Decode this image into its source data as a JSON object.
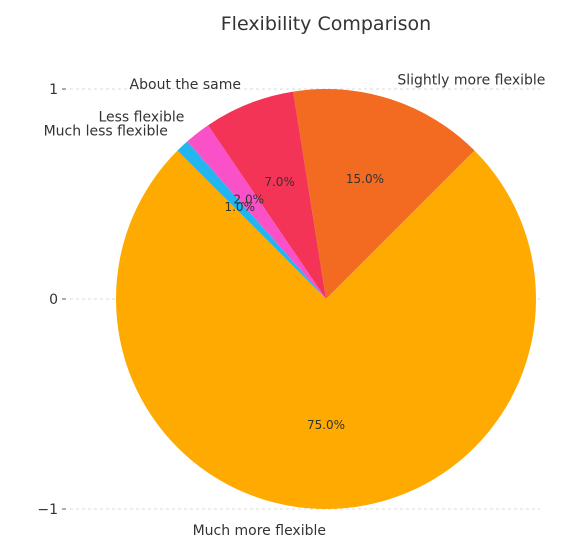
{
  "chart_data": {
    "type": "pie",
    "title": "Flexibility Comparison",
    "start_angle_deg": 135,
    "direction": "counterclockwise",
    "slices": [
      {
        "label": "Much more flexible",
        "value": 75.0,
        "pct_label": "75.0%",
        "color": "#FFAA00"
      },
      {
        "label": "Slightly more flexible",
        "value": 15.0,
        "pct_label": "15.0%",
        "color": "#F26B21"
      },
      {
        "label": "About the same",
        "value": 7.0,
        "pct_label": "7.0%",
        "color": "#F43456"
      },
      {
        "label": "Less flexible",
        "value": 2.0,
        "pct_label": "2.0%",
        "color": "#FA50C8"
      },
      {
        "label": "Much less flexible",
        "value": 1.0,
        "pct_label": "1.0%",
        "color": "#23B5F0"
      }
    ],
    "y_ticks": [
      {
        "value": 1,
        "label": "1"
      },
      {
        "value": 0,
        "label": "0"
      },
      {
        "value": -1,
        "label": "−1"
      }
    ],
    "ylim": [
      -1.05,
      1.05
    ],
    "grid": true
  }
}
